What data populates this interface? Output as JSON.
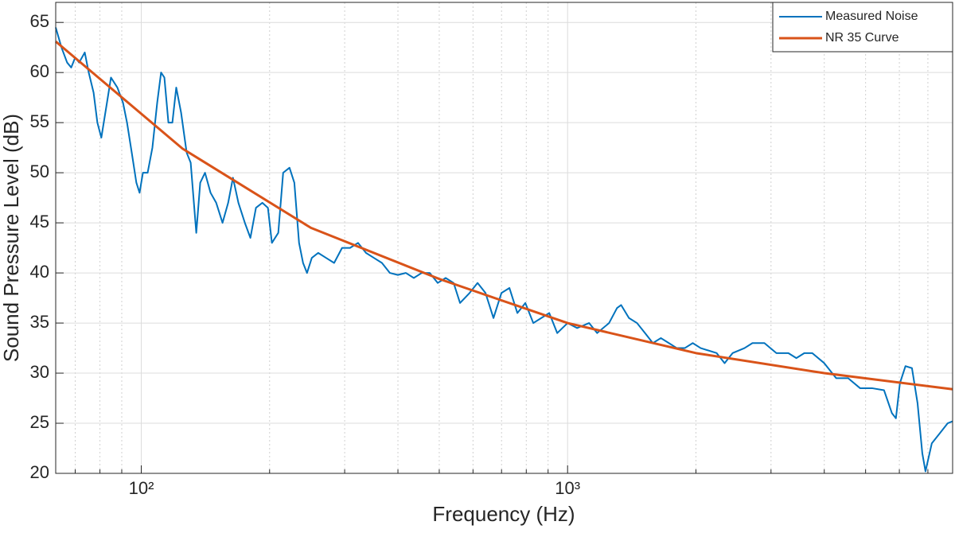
{
  "chart_data": {
    "type": "line",
    "x_label": "Frequency (Hz)",
    "y_label": "Sound Pressure Level (dB)",
    "xscale": "log",
    "xlim": [
      63,
      8000
    ],
    "ylim": [
      20,
      67
    ],
    "xticks": [
      {
        "value": 100,
        "label": "10²"
      },
      {
        "value": 1000,
        "label": "10³"
      }
    ],
    "xminorticks": [
      70,
      80,
      90,
      200,
      300,
      400,
      500,
      600,
      700,
      800,
      900,
      2000,
      3000,
      4000,
      5000,
      6000,
      7000
    ],
    "yticks": [
      20,
      25,
      30,
      35,
      40,
      45,
      50,
      55,
      60,
      65
    ],
    "grid": true,
    "legend": "upper right",
    "series": [
      {
        "name": "Measured Noise",
        "color": "#0072BD",
        "x": [
          63,
          65,
          67,
          68.5,
          70,
          71.5,
          73.7,
          75.3,
          77.3,
          78.9,
          80.6,
          83.1,
          84.9,
          87.9,
          90.6,
          92.6,
          95,
          97.4,
          99.1,
          100.9,
          103.5,
          106.2,
          109,
          111.3,
          113.3,
          115.8,
          118.3,
          120.8,
          124,
          127.8,
          130.6,
          134.6,
          137.5,
          141.1,
          145.4,
          149.9,
          155.1,
          159.9,
          164.1,
          169,
          175,
          180.3,
          185.8,
          192.3,
          198.2,
          202.5,
          209.6,
          215.2,
          222.7,
          228.6,
          234.5,
          239.6,
          244.8,
          251.2,
          260,
          271.4,
          283.4,
          295.8,
          308.8,
          322.4,
          336.6,
          351.4,
          366.9,
          383,
          399.8,
          417.4,
          435.8,
          454.9,
          475,
          495.8,
          517.6,
          540.4,
          559.4,
          589,
          614.9,
          641.9,
          670.1,
          699.6,
          730.4,
          762.4,
          796,
          831,
          867.5,
          905.7,
          945.5,
          1000,
          1053,
          1123,
          1173,
          1251,
          1306,
          1335,
          1393,
          1455,
          1519,
          1585,
          1655,
          1728,
          1804,
          1883,
          1966,
          2052,
          2237,
          2335,
          2438,
          2600,
          2714,
          2895,
          3089,
          3295,
          3440,
          3591,
          3749,
          3999,
          4266,
          4550,
          4853,
          5176,
          5523,
          5765,
          5890,
          6018,
          6202,
          6423,
          6620,
          6792,
          6910,
          7150,
          7465,
          7790,
          8000
        ],
        "values": [
          64.5,
          62.5,
          61,
          60.5,
          61.5,
          61,
          62,
          60,
          58,
          55,
          53.5,
          57,
          59.5,
          58.5,
          57,
          55,
          52,
          49,
          48,
          50,
          50,
          52.5,
          57,
          60,
          59.5,
          55,
          55,
          58.5,
          56,
          52,
          51,
          44,
          49,
          50,
          48,
          47,
          45,
          47,
          49.5,
          47,
          45,
          43.5,
          46.5,
          47,
          46.5,
          43,
          44,
          50,
          50.5,
          49,
          43,
          41,
          40,
          41.5,
          42,
          41.5,
          41,
          42.5,
          42.5,
          43,
          42,
          41.5,
          41,
          40,
          39.8,
          40,
          39.5,
          40,
          40,
          39,
          39.5,
          39,
          37,
          38,
          39,
          38,
          35.5,
          38,
          38.5,
          36,
          37,
          35,
          35.5,
          36,
          34,
          35,
          34.5,
          35,
          34,
          35,
          36.5,
          36.8,
          35.5,
          35,
          34,
          33,
          33.5,
          33,
          32.5,
          32.5,
          33,
          32.5,
          32,
          31,
          32,
          32.5,
          33,
          33,
          32,
          32,
          31.5,
          32,
          32,
          31,
          29.5,
          29.5,
          28.5,
          28.5,
          28.3,
          26,
          25.5,
          29,
          30.7,
          30.5,
          27,
          22,
          20.2,
          23,
          24,
          25,
          25.2
        ]
      },
      {
        "name": "NR 35 Curve",
        "color": "#D95319",
        "x": [
          63,
          125,
          250,
          500,
          1000,
          2000,
          4000,
          8000
        ],
        "values": [
          63.1,
          52.4,
          44.5,
          39.4,
          35,
          32,
          30,
          28.4
        ]
      }
    ]
  }
}
